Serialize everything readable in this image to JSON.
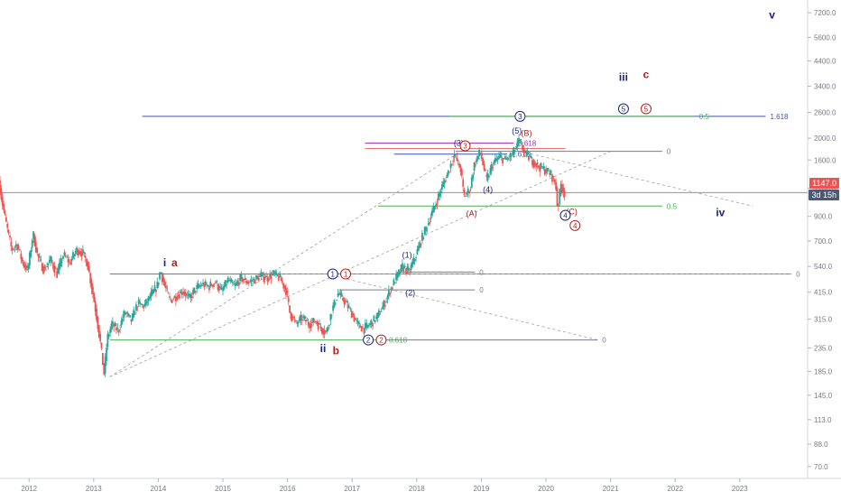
{
  "chart_data": {
    "type": "line",
    "title": "",
    "xlabel": "",
    "ylabel": "",
    "scale": "log",
    "grid": false,
    "y_ticks": [
      7200,
      5600,
      4400,
      3400,
      2600,
      2000,
      1600,
      1200,
      900,
      700,
      540,
      415,
      315,
      235,
      185,
      145,
      113,
      88,
      70
    ],
    "y_tick_labels": [
      "7200.0",
      "5600.0",
      "4400.0",
      "3400.0",
      "2600.0",
      "2000.0",
      "1600.0",
      "1200.0",
      "900.0",
      "700.0",
      "540.0",
      "415.0",
      "315.0",
      "235.0",
      "185.0",
      "145.0",
      "113.0",
      "88.0",
      "70.0"
    ],
    "x_ticks": [
      "2012",
      "2013",
      "2014",
      "2015",
      "2016",
      "2017",
      "2018",
      "2019",
      "2020",
      "2021",
      "2022",
      "2023"
    ],
    "x_range": [
      2011.55,
      2024.05
    ],
    "ylim": [
      62,
      8200
    ],
    "last_price": "1147.0",
    "countdown": "3d 15h",
    "colors": {
      "price_line": "#e57373",
      "badge_price": "#ef5350",
      "badge_timer": "#4a5a75",
      "bull": "#26a69a",
      "bear": "#ef5350",
      "wave_blue": "#1a237e",
      "wave_red": "#b71c1c",
      "fib_green": "#4caf50",
      "fib_purple": "#9c27b0"
    },
    "series": [
      {
        "values": [
          [
            2011.55,
            1300
          ],
          [
            2011.6,
            1050
          ],
          [
            2011.67,
            820
          ],
          [
            2011.75,
            640
          ],
          [
            2011.83,
            680
          ],
          [
            2011.92,
            560
          ],
          [
            2012.0,
            520
          ],
          [
            2012.08,
            760
          ],
          [
            2012.15,
            600
          ],
          [
            2012.25,
            520
          ],
          [
            2012.35,
            580
          ],
          [
            2012.45,
            500
          ],
          [
            2012.55,
            610
          ],
          [
            2012.65,
            560
          ],
          [
            2012.75,
            640
          ],
          [
            2012.85,
            620
          ],
          [
            2012.92,
            560
          ],
          [
            2013.0,
            420
          ],
          [
            2013.06,
            330
          ],
          [
            2013.12,
            250
          ],
          [
            2013.18,
            180
          ],
          [
            2013.23,
            260
          ],
          [
            2013.3,
            300
          ],
          [
            2013.4,
            280
          ],
          [
            2013.5,
            340
          ],
          [
            2013.6,
            310
          ],
          [
            2013.7,
            370
          ],
          [
            2013.8,
            360
          ],
          [
            2013.9,
            400
          ],
          [
            2014.0,
            440
          ],
          [
            2014.05,
            520
          ],
          [
            2014.1,
            460
          ],
          [
            2014.2,
            380
          ],
          [
            2014.3,
            400
          ],
          [
            2014.4,
            420
          ],
          [
            2014.5,
            390
          ],
          [
            2014.6,
            430
          ],
          [
            2014.7,
            450
          ],
          [
            2014.8,
            440
          ],
          [
            2014.9,
            460
          ],
          [
            2015.0,
            420
          ],
          [
            2015.1,
            470
          ],
          [
            2015.2,
            440
          ],
          [
            2015.3,
            480
          ],
          [
            2015.4,
            460
          ],
          [
            2015.5,
            470
          ],
          [
            2015.6,
            490
          ],
          [
            2015.7,
            480
          ],
          [
            2015.8,
            500
          ],
          [
            2015.9,
            480
          ],
          [
            2016.0,
            420
          ],
          [
            2016.05,
            340
          ],
          [
            2016.15,
            300
          ],
          [
            2016.25,
            320
          ],
          [
            2016.35,
            300
          ],
          [
            2016.45,
            310
          ],
          [
            2016.55,
            285
          ],
          [
            2016.62,
            275
          ],
          [
            2016.7,
            340
          ],
          [
            2016.8,
            410
          ],
          [
            2016.9,
            380
          ],
          [
            2017.0,
            340
          ],
          [
            2017.1,
            300
          ],
          [
            2017.2,
            285
          ],
          [
            2017.3,
            300
          ],
          [
            2017.4,
            320
          ],
          [
            2017.5,
            360
          ],
          [
            2017.6,
            420
          ],
          [
            2017.7,
            480
          ],
          [
            2017.8,
            540
          ],
          [
            2017.9,
            510
          ],
          [
            2018.0,
            600
          ],
          [
            2018.1,
            720
          ],
          [
            2018.2,
            850
          ],
          [
            2018.3,
            1000
          ],
          [
            2018.4,
            1200
          ],
          [
            2018.5,
            1400
          ],
          [
            2018.6,
            1700
          ],
          [
            2018.7,
            1450
          ],
          [
            2018.75,
            1100
          ],
          [
            2018.85,
            1200
          ],
          [
            2018.9,
            1500
          ],
          [
            2019.0,
            1750
          ],
          [
            2019.1,
            1300
          ],
          [
            2019.2,
            1550
          ],
          [
            2019.3,
            1650
          ],
          [
            2019.4,
            1600
          ],
          [
            2019.5,
            1700
          ],
          [
            2019.55,
            1800
          ],
          [
            2019.6,
            1950
          ],
          [
            2019.7,
            1700
          ],
          [
            2019.8,
            1600
          ],
          [
            2019.9,
            1500
          ],
          [
            2020.0,
            1450
          ],
          [
            2020.1,
            1380
          ],
          [
            2020.17,
            1250
          ],
          [
            2020.2,
            960
          ],
          [
            2020.25,
            1250
          ],
          [
            2020.3,
            1147
          ]
        ]
      }
    ],
    "horizontal_lines": [
      {
        "x1": 2013.25,
        "x2": 2023.8,
        "y": 500,
        "color": "#787b86",
        "label": "0"
      },
      {
        "x1": 2015.8,
        "x2": 2023.8,
        "y": 500,
        "color": "#9e9e9e",
        "dashed": true,
        "label": "0"
      },
      {
        "x1": 2017.7,
        "x2": 2018.9,
        "y": 510,
        "color": "#787b86",
        "label": "0"
      },
      {
        "x1": 2016.8,
        "x2": 2018.9,
        "y": 425,
        "color": "#787b86",
        "label": "0"
      },
      {
        "x1": 2013.25,
        "x2": 2017.5,
        "y": 255,
        "color": "#4caf50",
        "label": "0.618"
      },
      {
        "x1": 2017.5,
        "x2": 2020.8,
        "y": 255,
        "color": "#787b86",
        "label": "0"
      },
      {
        "x1": 2017.4,
        "x2": 2021.8,
        "y": 1000,
        "color": "#4caf50",
        "label": "0.5"
      },
      {
        "x1": 2018.6,
        "x2": 2021.8,
        "y": 1750,
        "color": "#787b86",
        "label": "0"
      },
      {
        "x1": 2017.2,
        "x2": 2020.3,
        "y": 1800,
        "color": "#e57373",
        "label": ""
      },
      {
        "x1": 2017.2,
        "x2": 2019.5,
        "y": 1900,
        "color": "#9c27b0",
        "label": "3.618"
      },
      {
        "x1": 2017.65,
        "x2": 2019.4,
        "y": 1700,
        "color": "#3f51b5",
        "label": "1.618"
      },
      {
        "x1": 2013.75,
        "x2": 2023.4,
        "y": 2500,
        "color": "#3f51b5",
        "label": "1.618"
      },
      {
        "x1": 2018.5,
        "x2": 2022.3,
        "y": 2500,
        "color": "#4caf50",
        "label": "0.5"
      }
    ],
    "wave_labels": [
      {
        "text": "i",
        "x": 2014.1,
        "y": 540,
        "color": "#1a237e"
      },
      {
        "text": "a",
        "x": 2014.25,
        "y": 540,
        "color": "#b71c1c"
      },
      {
        "text": "ii",
        "x": 2016.55,
        "y": 225,
        "color": "#1a237e"
      },
      {
        "text": "b",
        "x": 2016.75,
        "y": 220,
        "color": "#b71c1c"
      },
      {
        "text": "iii",
        "x": 2021.2,
        "y": 3600,
        "color": "#1a237e"
      },
      {
        "text": "c",
        "x": 2021.55,
        "y": 3700,
        "color": "#b71c1c"
      },
      {
        "text": "iv",
        "x": 2022.7,
        "y": 900,
        "color": "#1a237e"
      },
      {
        "text": "v",
        "x": 2023.5,
        "y": 6800,
        "color": "#1a237e"
      },
      {
        "text": "(1)",
        "x": 2017.85,
        "y": 590,
        "color": "#1a237e"
      },
      {
        "text": "(2)",
        "x": 2017.9,
        "y": 400,
        "color": "#1a237e"
      },
      {
        "text": "(3)",
        "x": 2018.65,
        "y": 1850,
        "color": "#1a237e"
      },
      {
        "text": "(4)",
        "x": 2019.1,
        "y": 1150,
        "color": "#1a237e"
      },
      {
        "text": "(5)",
        "x": 2019.55,
        "y": 2100,
        "color": "#1a237e"
      },
      {
        "text": "(A)",
        "x": 2018.85,
        "y": 900,
        "color": "#b71c1c"
      },
      {
        "text": "(B)",
        "x": 2019.7,
        "y": 2050,
        "color": "#b71c1c"
      },
      {
        "text": "(C)",
        "x": 2020.4,
        "y": 920,
        "color": "#b71c1c"
      }
    ],
    "circled_labels": [
      {
        "text": "1",
        "x": 2016.7,
        "y": 500,
        "color": "#1a237e"
      },
      {
        "text": "1",
        "x": 2016.9,
        "y": 500,
        "color": "#b71c1c"
      },
      {
        "text": "2",
        "x": 2017.25,
        "y": 255,
        "color": "#1a237e"
      },
      {
        "text": "2",
        "x": 2017.45,
        "y": 255,
        "color": "#b71c1c"
      },
      {
        "text": "3",
        "x": 2018.75,
        "y": 1850,
        "color": "#b71c1c"
      },
      {
        "text": "3",
        "x": 2019.6,
        "y": 2500,
        "color": "#1a237e"
      },
      {
        "text": "4",
        "x": 2020.3,
        "y": 910,
        "color": "#1a237e"
      },
      {
        "text": "4",
        "x": 2020.45,
        "y": 820,
        "color": "#b71c1c"
      },
      {
        "text": "5",
        "x": 2021.2,
        "y": 2700,
        "color": "#1a237e"
      },
      {
        "text": "5",
        "x": 2021.55,
        "y": 2700,
        "color": "#b71c1c"
      }
    ],
    "dashed_trend_lines": [
      {
        "x1": 2013.25,
        "y1": 175,
        "x2": 2018.75,
        "y2": 1800,
        "color": "#9e9e9e"
      },
      {
        "x1": 2013.25,
        "y1": 175,
        "x2": 2021.0,
        "y2": 1750,
        "color": "#9e9e9e"
      },
      {
        "x1": 2016.6,
        "y1": 500,
        "x2": 2020.8,
        "y2": 255,
        "color": "#9e9e9e"
      },
      {
        "x1": 2019.6,
        "y1": 1750,
        "x2": 2023.2,
        "y2": 1000,
        "color": "#9e9e9e"
      }
    ]
  }
}
